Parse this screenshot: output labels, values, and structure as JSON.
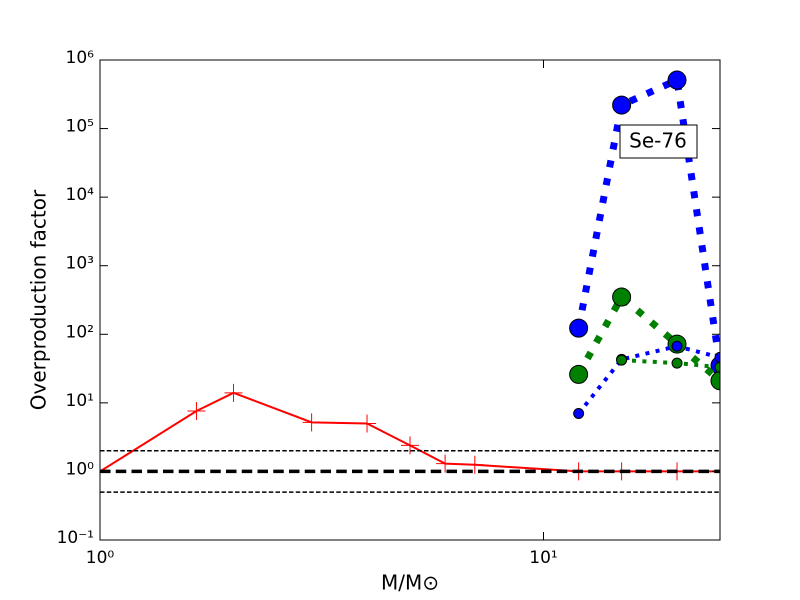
{
  "chart_data": {
    "type": "line",
    "xlabel": "M/M⊙",
    "ylabel": "Overproduction factor",
    "annotation": "Se-76",
    "xscale": "log",
    "yscale": "log",
    "xlim": [
      1,
      25
    ],
    "ylim": [
      0.1,
      1000000
    ],
    "xticks": [
      {
        "value": 1,
        "label": "10⁰"
      },
      {
        "value": 10,
        "label": "10¹"
      }
    ],
    "yticks": [
      {
        "value": 0.1,
        "label": "10⁻¹"
      },
      {
        "value": 1,
        "label": "10⁰"
      },
      {
        "value": 10,
        "label": "10¹"
      },
      {
        "value": 100,
        "label": "10²"
      },
      {
        "value": 1000,
        "label": "10³"
      },
      {
        "value": 10000,
        "label": "10⁴"
      },
      {
        "value": 100000,
        "label": "10⁵"
      },
      {
        "value": 1000000,
        "label": "10⁶"
      }
    ],
    "hlines": [
      {
        "value": 2,
        "color": "#000000",
        "width": 1.5
      },
      {
        "value": 1,
        "color": "#000000",
        "width": 3.5
      },
      {
        "value": 0.5,
        "color": "#000000",
        "width": 1.5
      }
    ],
    "series": [
      {
        "color": "#ff0000",
        "linestyle": "solid",
        "linewidth": 2,
        "marker": "plus",
        "marker_size": 9,
        "x": [
          1,
          1.65,
          2,
          3,
          4,
          5,
          6,
          7,
          12,
          15,
          20,
          25
        ],
        "values": [
          1,
          7.6,
          14,
          5.2,
          5,
          2.4,
          1.3,
          1.25,
          1,
          1,
          1,
          1
        ]
      },
      {
        "color": "#0000ff",
        "linestyle": "dotted",
        "linewidth": 7,
        "marker": "circle",
        "marker_size": 9,
        "x": [
          12,
          15,
          20,
          25
        ],
        "values": [
          123,
          220000,
          510000,
          35
        ]
      },
      {
        "color": "#008000",
        "linestyle": "dotted",
        "linewidth": 7,
        "marker": "circle",
        "marker_size": 9,
        "x": [
          12,
          15,
          20,
          25
        ],
        "values": [
          26,
          350,
          72,
          21
        ]
      },
      {
        "color": "#0000ff",
        "linestyle": "dotted",
        "linewidth": 4,
        "marker": "circle",
        "marker_size": 5,
        "x": [
          12,
          15,
          20,
          25
        ],
        "values": [
          7,
          43,
          67,
          46
        ]
      },
      {
        "color": "#008000",
        "linestyle": "dotted",
        "linewidth": 4,
        "marker": "circle",
        "marker_size": 5,
        "x": [
          12,
          15,
          20,
          25
        ],
        "values": [
          null,
          42,
          38,
          33
        ]
      }
    ]
  }
}
